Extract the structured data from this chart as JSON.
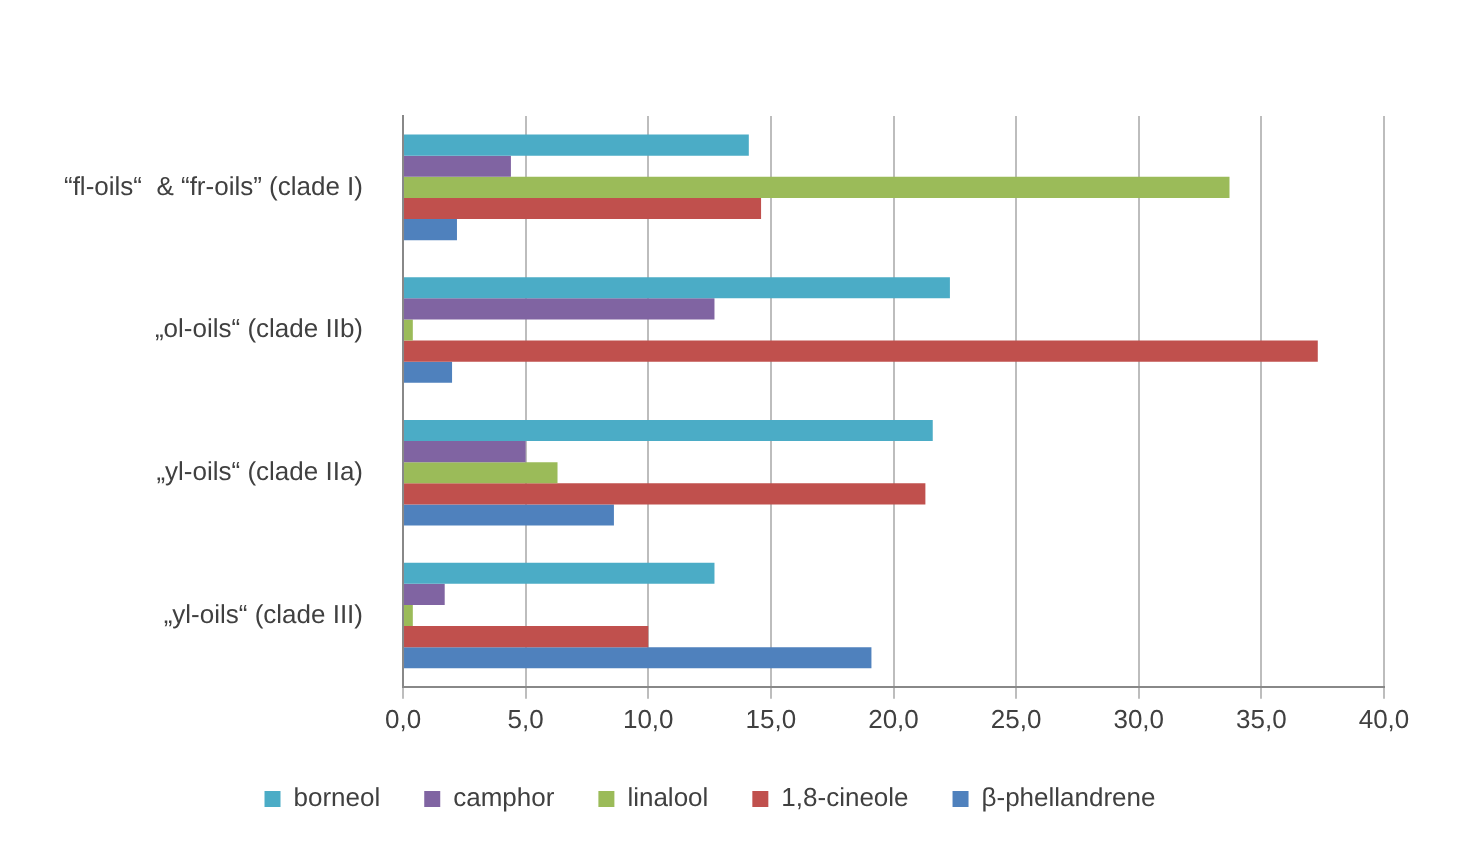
{
  "chart_data": {
    "type": "bar",
    "orientation": "horizontal",
    "categories": [
      "“fl-oils“  & “fr-oils” (clade I)",
      "„ol-oils“ (clade IIb)",
      "„yl-oils“ (clade IIa)",
      "„yl-oils“ (clade III)"
    ],
    "series": [
      {
        "name": "borneol",
        "color": "#4bacc6",
        "values": [
          14.1,
          22.3,
          21.6,
          12.7
        ]
      },
      {
        "name": "camphor",
        "color": "#8064a2",
        "values": [
          4.4,
          12.7,
          5.0,
          1.7
        ]
      },
      {
        "name": "linalool",
        "color": "#9bbb59",
        "values": [
          33.7,
          0.4,
          6.3,
          0.4
        ]
      },
      {
        "name": "1,8-cineole",
        "color": "#c0504d",
        "values": [
          14.6,
          37.3,
          21.3,
          10.0
        ]
      },
      {
        "name": "β-phellandrene",
        "color": "#4f81bd",
        "values": [
          2.2,
          2.0,
          8.6,
          19.1
        ]
      }
    ],
    "xlim": [
      0,
      40
    ],
    "xticks": [
      {
        "value": 0,
        "label": "0,0"
      },
      {
        "value": 5,
        "label": "5,0"
      },
      {
        "value": 10,
        "label": "10,0"
      },
      {
        "value": 15,
        "label": "15,0"
      },
      {
        "value": 20,
        "label": "20,0"
      },
      {
        "value": 25,
        "label": "25,0"
      },
      {
        "value": 30,
        "label": "30,0"
      },
      {
        "value": 35,
        "label": "35,0"
      },
      {
        "value": 40,
        "label": "40,0"
      }
    ],
    "grid": "x",
    "legend": "bottom"
  }
}
